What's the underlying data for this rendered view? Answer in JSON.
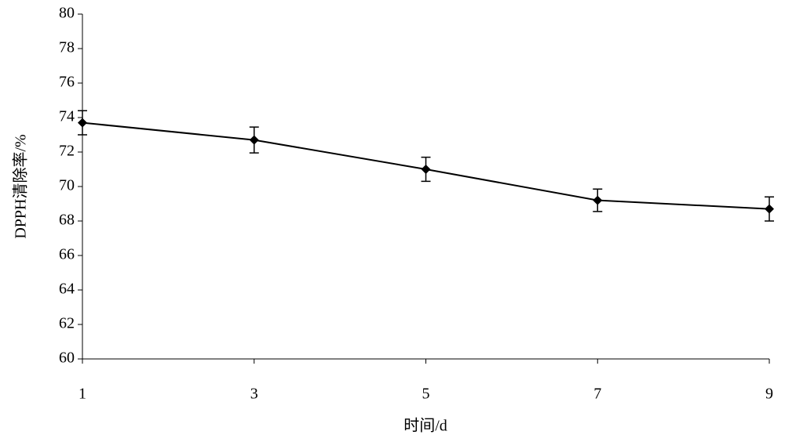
{
  "chart_data": {
    "type": "line",
    "x_label": "时间/d",
    "y_label": "DPPH清除率/%",
    "x": [
      1,
      3,
      5,
      7,
      9
    ],
    "values": [
      73.7,
      72.7,
      71.0,
      69.2,
      68.7
    ],
    "errors": [
      0.7,
      0.75,
      0.7,
      0.65,
      0.7
    ],
    "color": "#000000",
    "xlim": [
      1,
      9
    ],
    "xticks": [
      1,
      3,
      5,
      7,
      9
    ],
    "ylim": [
      60,
      80
    ],
    "yticks": [
      60,
      62,
      64,
      66,
      68,
      70,
      72,
      74,
      76,
      78,
      80
    ],
    "grid": false
  }
}
